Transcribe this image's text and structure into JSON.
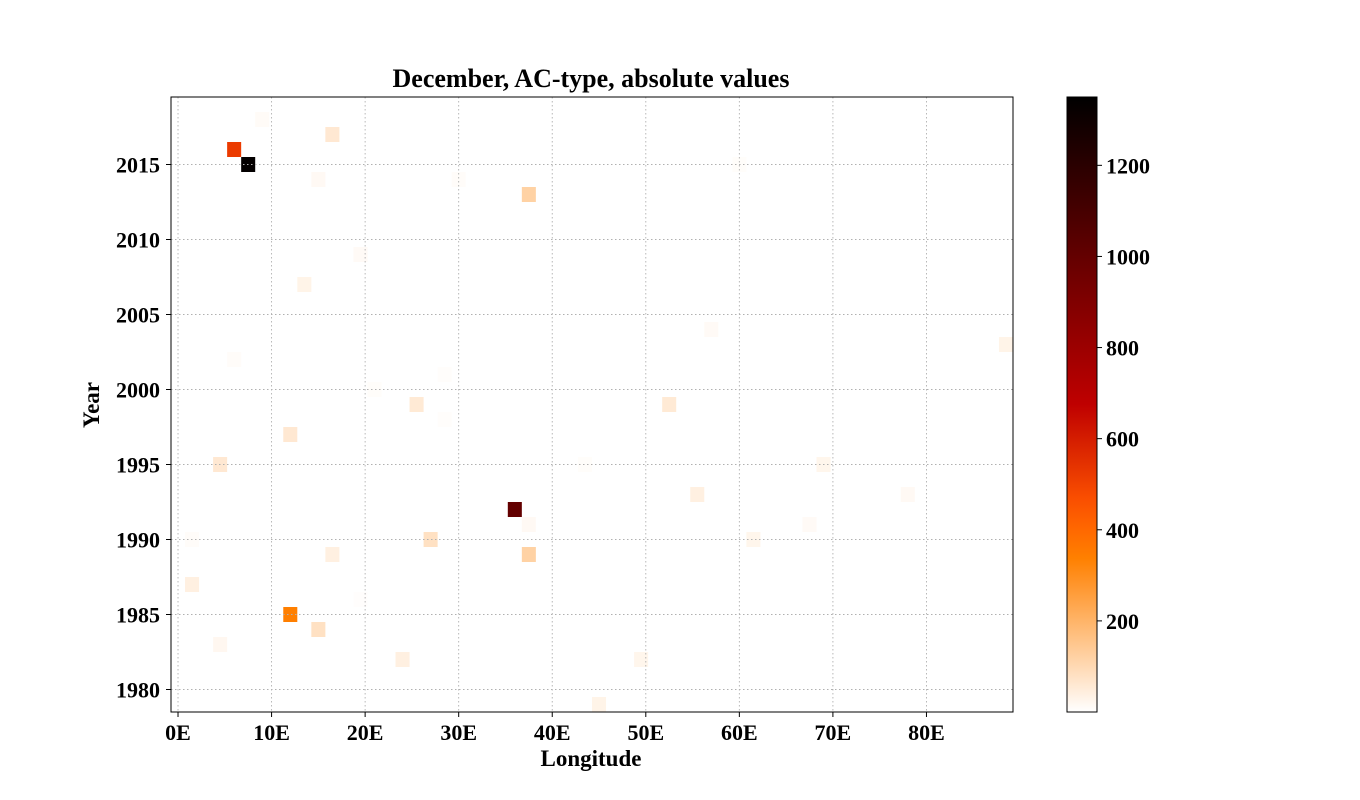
{
  "chart_data": {
    "type": "heatmap",
    "title": "December, AC-type, absolute values",
    "xlabel": "Longitude",
    "ylabel": "Year",
    "xlim": [
      -0.75,
      89.25
    ],
    "ylim": [
      1978.5,
      2019.5
    ],
    "x_ticks": [
      {
        "value": 0,
        "label": "0E"
      },
      {
        "value": 10,
        "label": "10E"
      },
      {
        "value": 20,
        "label": "20E"
      },
      {
        "value": 30,
        "label": "30E"
      },
      {
        "value": 40,
        "label": "40E"
      },
      {
        "value": 50,
        "label": "50E"
      },
      {
        "value": 60,
        "label": "60E"
      },
      {
        "value": 70,
        "label": "70E"
      },
      {
        "value": 80,
        "label": "80E"
      }
    ],
    "y_ticks": [
      {
        "value": 1980,
        "label": "1980"
      },
      {
        "value": 1985,
        "label": "1985"
      },
      {
        "value": 1990,
        "label": "1990"
      },
      {
        "value": 1995,
        "label": "1995"
      },
      {
        "value": 2000,
        "label": "2000"
      },
      {
        "value": 2005,
        "label": "2005"
      },
      {
        "value": 2010,
        "label": "2010"
      },
      {
        "value": 2015,
        "label": "2015"
      }
    ],
    "grid": true,
    "cell_width_deg": 1.5,
    "colormap": "gist_heat_r",
    "colorbar": {
      "min": 0,
      "max": 1350,
      "ticks": [
        {
          "value": 200,
          "label": "200"
        },
        {
          "value": 400,
          "label": "400"
        },
        {
          "value": 600,
          "label": "600"
        },
        {
          "value": 800,
          "label": "800"
        },
        {
          "value": 1000,
          "label": "1000"
        },
        {
          "value": 1200,
          "label": "1200"
        }
      ]
    },
    "cells": [
      {
        "lon": 9,
        "year": 2018,
        "value": 10
      },
      {
        "lon": 16.5,
        "year": 2017,
        "value": 60
      },
      {
        "lon": 6,
        "year": 2016,
        "value": 520
      },
      {
        "lon": 7.5,
        "year": 2015,
        "value": 1340
      },
      {
        "lon": 60,
        "year": 2015,
        "value": 6
      },
      {
        "lon": 15,
        "year": 2014,
        "value": 15
      },
      {
        "lon": 30,
        "year": 2014,
        "value": 8
      },
      {
        "lon": 37.5,
        "year": 2013,
        "value": 120
      },
      {
        "lon": 19.5,
        "year": 2009,
        "value": 12
      },
      {
        "lon": 13.5,
        "year": 2007,
        "value": 30
      },
      {
        "lon": 57,
        "year": 2004,
        "value": 12
      },
      {
        "lon": 88.5,
        "year": 2003,
        "value": 30
      },
      {
        "lon": 6,
        "year": 2002,
        "value": 8
      },
      {
        "lon": 28.5,
        "year": 2001,
        "value": 5
      },
      {
        "lon": 21,
        "year": 2000,
        "value": 6
      },
      {
        "lon": 25.5,
        "year": 1999,
        "value": 55
      },
      {
        "lon": 52.5,
        "year": 1999,
        "value": 55
      },
      {
        "lon": 28.5,
        "year": 1998,
        "value": 5
      },
      {
        "lon": 12,
        "year": 1997,
        "value": 60
      },
      {
        "lon": 4.5,
        "year": 1995,
        "value": 60
      },
      {
        "lon": 43.5,
        "year": 1995,
        "value": 6
      },
      {
        "lon": 69,
        "year": 1995,
        "value": 25
      },
      {
        "lon": 55.5,
        "year": 1993,
        "value": 40
      },
      {
        "lon": 78,
        "year": 1993,
        "value": 15
      },
      {
        "lon": 36,
        "year": 1992,
        "value": 1000
      },
      {
        "lon": 37.5,
        "year": 1991,
        "value": 15
      },
      {
        "lon": 67.5,
        "year": 1991,
        "value": 12
      },
      {
        "lon": 1.5,
        "year": 1990,
        "value": 8
      },
      {
        "lon": 27,
        "year": 1990,
        "value": 80
      },
      {
        "lon": 61.5,
        "year": 1990,
        "value": 25
      },
      {
        "lon": 16.5,
        "year": 1989,
        "value": 40
      },
      {
        "lon": 37.5,
        "year": 1989,
        "value": 120
      },
      {
        "lon": 1.5,
        "year": 1987,
        "value": 40
      },
      {
        "lon": 19.5,
        "year": 1986,
        "value": 4
      },
      {
        "lon": 12,
        "year": 1985,
        "value": 340
      },
      {
        "lon": 15,
        "year": 1984,
        "value": 80
      },
      {
        "lon": 4.5,
        "year": 1983,
        "value": 20
      },
      {
        "lon": 24,
        "year": 1982,
        "value": 40
      },
      {
        "lon": 49.5,
        "year": 1982,
        "value": 25
      },
      {
        "lon": 45,
        "year": 1979,
        "value": 30
      }
    ]
  }
}
